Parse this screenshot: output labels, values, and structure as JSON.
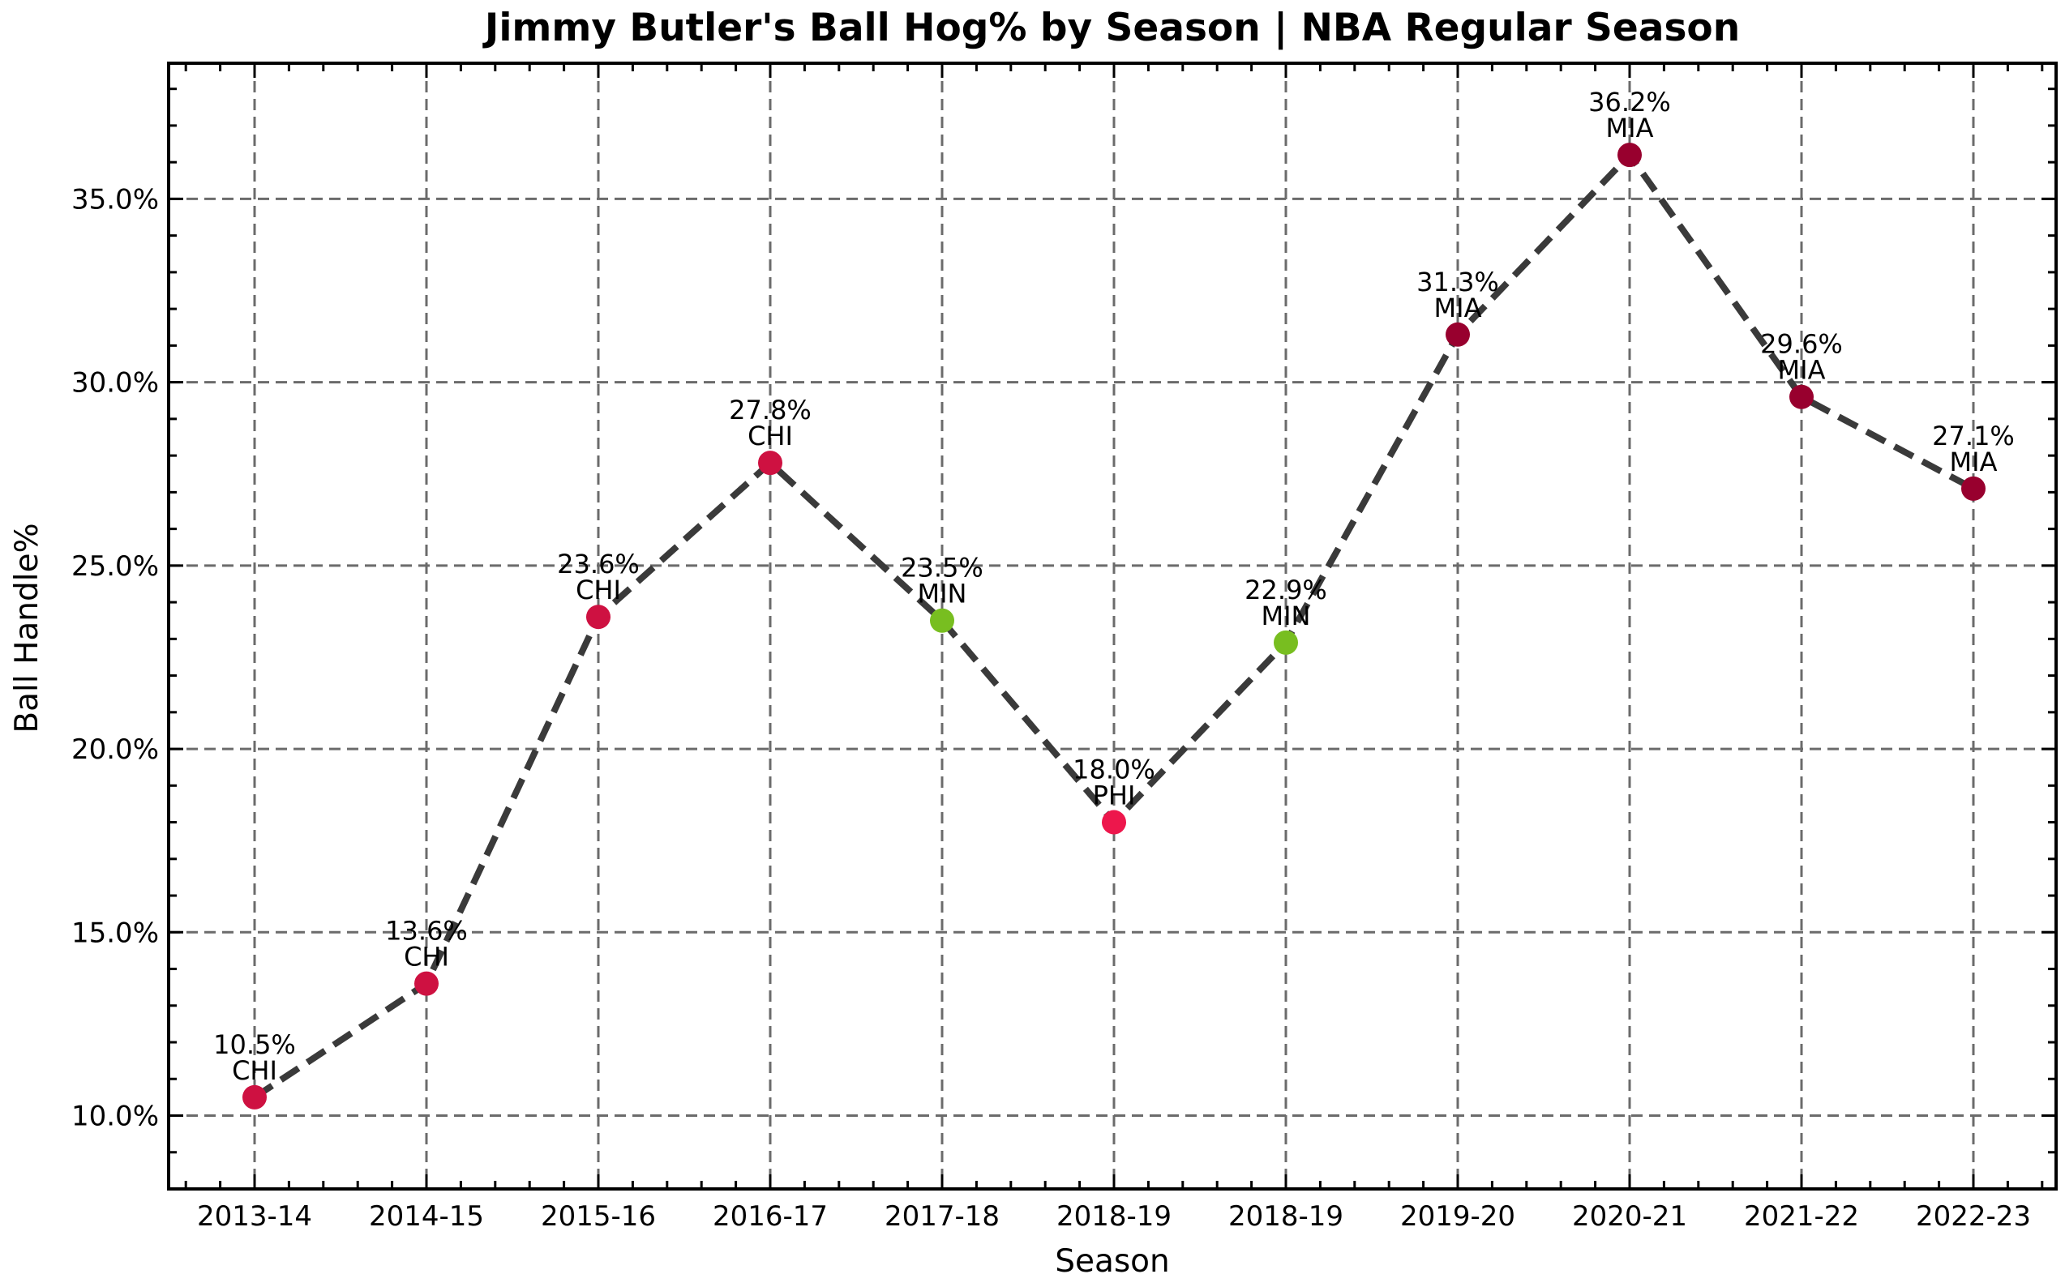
{
  "chart_data": {
    "type": "line",
    "title": "Jimmy Butler's Ball Hog% by Season | NBA Regular Season",
    "xlabel": "Season",
    "ylabel": "Ball Handle%",
    "ylim": [
      8.0,
      38.7
    ],
    "yticks": [
      10.0,
      15.0,
      20.0,
      25.0,
      30.0,
      35.0
    ],
    "ytick_labels": [
      "10.0%",
      "15.0%",
      "20.0%",
      "25.0%",
      "30.0%",
      "35.0%"
    ],
    "grid": true,
    "categories": [
      "2013-14",
      "2014-15",
      "2015-16",
      "2016-17",
      "2017-18",
      "2018-19",
      "2018-19",
      "2019-20",
      "2020-21",
      "2021-22",
      "2022-23"
    ],
    "values": [
      10.5,
      13.6,
      23.6,
      27.8,
      23.5,
      18.0,
      22.9,
      31.3,
      36.2,
      29.6,
      27.1
    ],
    "value_labels": [
      "10.5%",
      "13.6%",
      "23.6%",
      "27.8%",
      "23.5%",
      "18.0%",
      "22.9%",
      "31.3%",
      "36.2%",
      "29.6%",
      "27.1%"
    ],
    "teams": [
      "CHI",
      "CHI",
      "CHI",
      "CHI",
      "MIN",
      "PHI",
      "MIN",
      "MIA",
      "MIA",
      "MIA",
      "MIA"
    ],
    "team_colors": {
      "CHI": "#CE1141",
      "MIN": "#78BE20",
      "PHI": "#ED174C",
      "MIA": "#98002E"
    },
    "line_color": "#3a3a3a",
    "grid_color": "#6b6b6b"
  }
}
